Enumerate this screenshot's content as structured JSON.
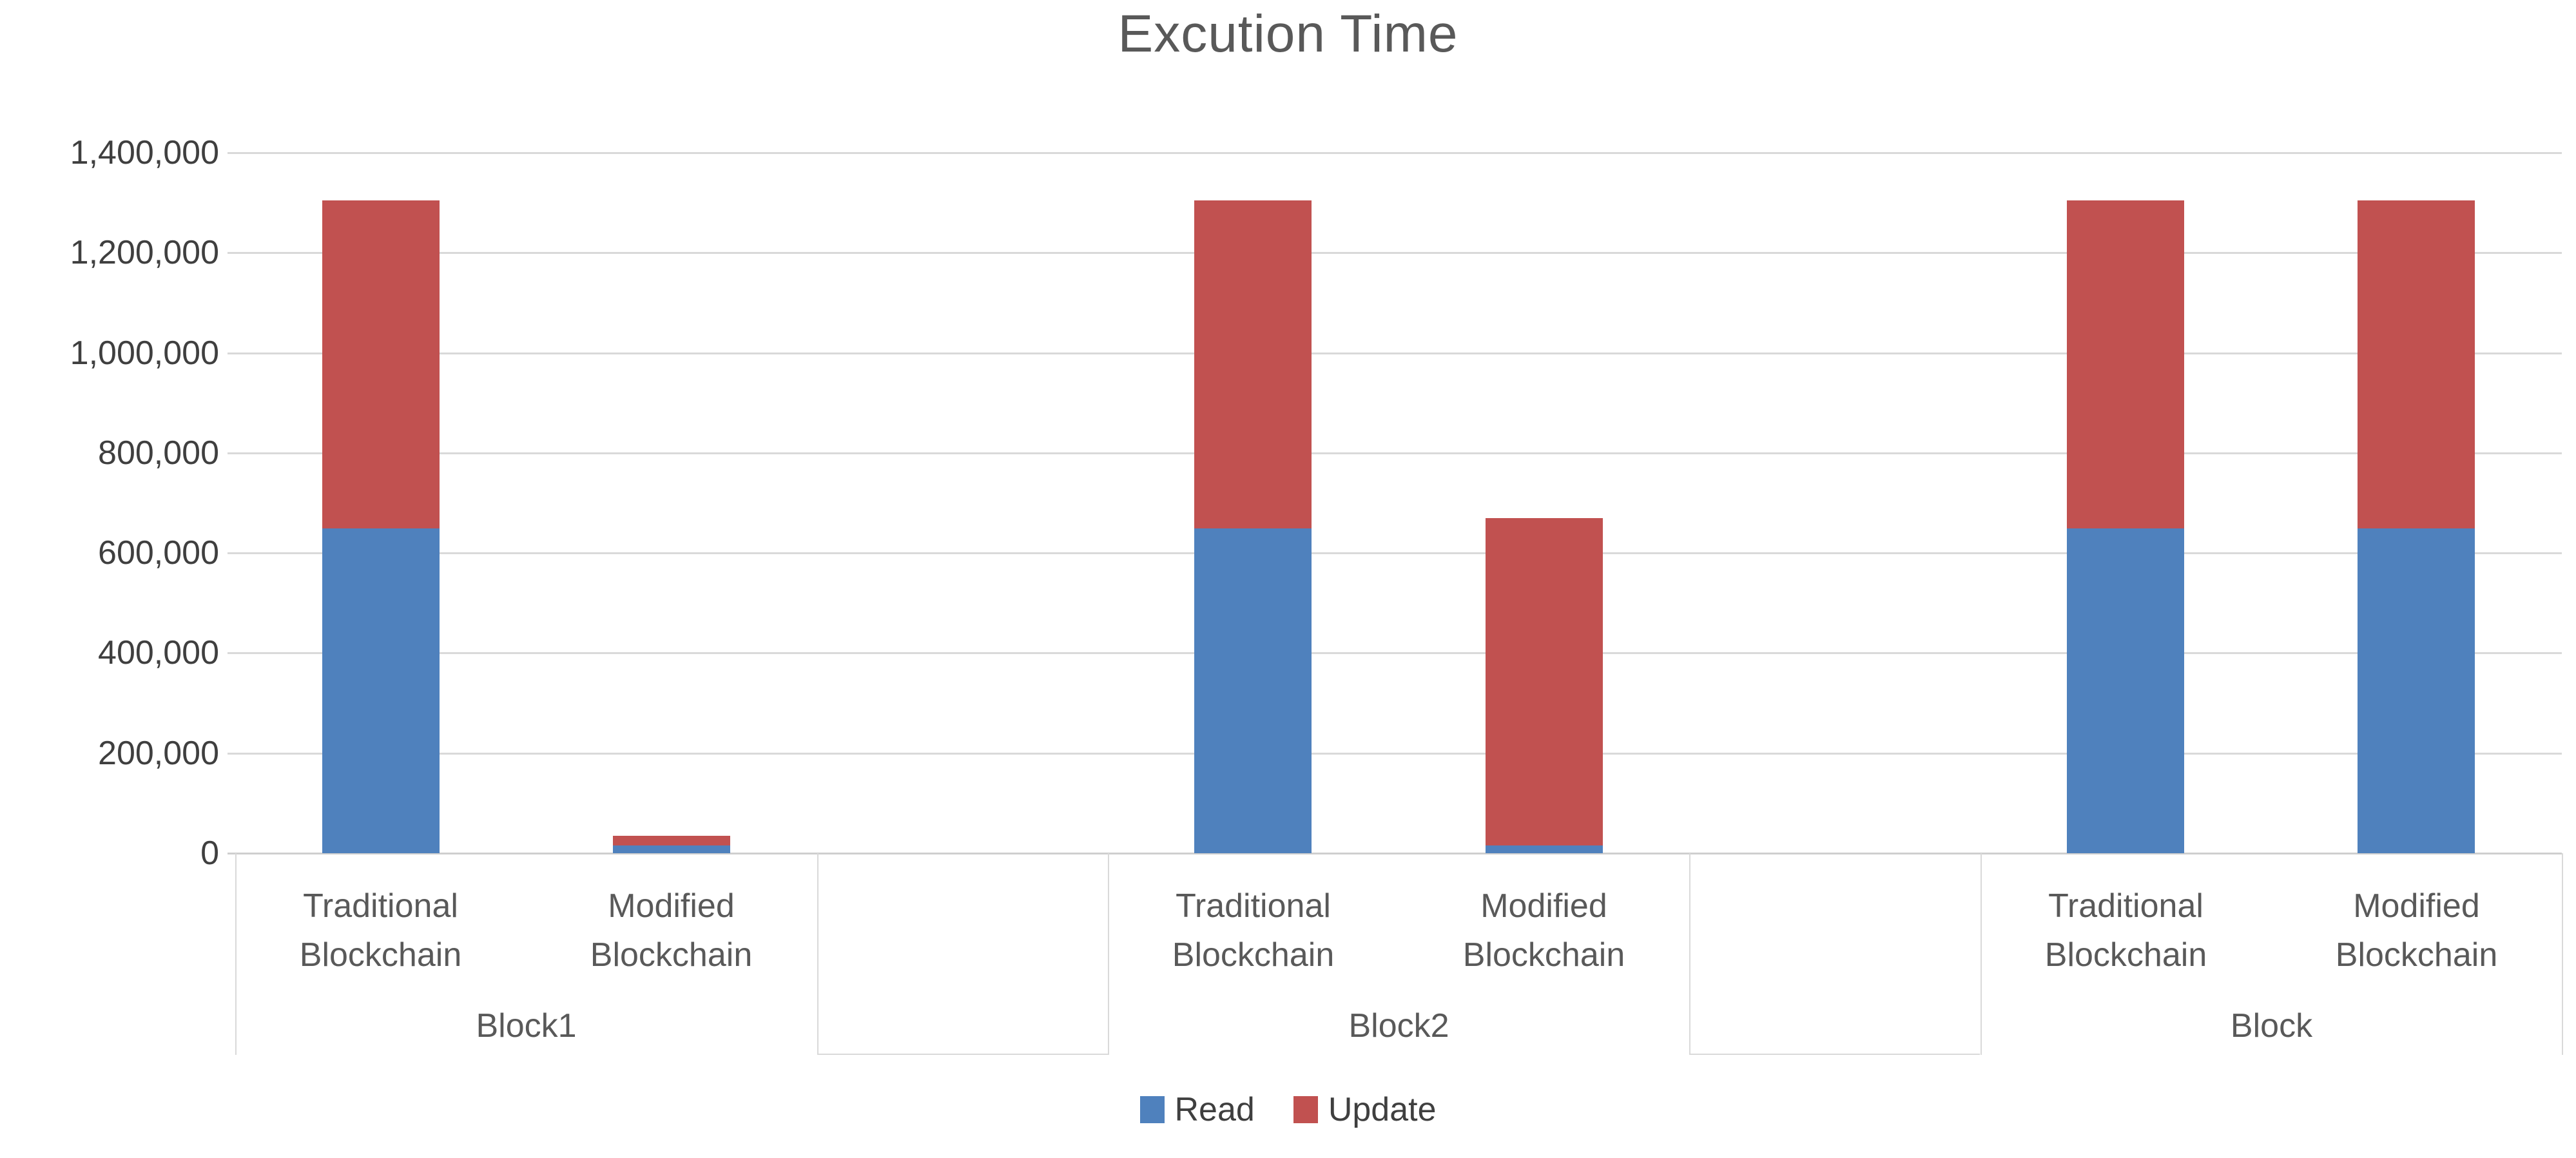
{
  "title": "Excution Time",
  "legend": {
    "position": "bottom",
    "items": [
      {
        "label": "Read",
        "color": "#4F81BD"
      },
      {
        "label": "Update",
        "color": "#C15150"
      }
    ]
  },
  "y_axis": {
    "min": 0,
    "max": 1400000,
    "step": 200000,
    "tick_labels_top_down": [
      "1,400,000",
      "1,200,000",
      "1,000,000",
      "800,000",
      "600,000",
      "400,000",
      "200,000",
      "0"
    ]
  },
  "chart_data": {
    "type": "bar",
    "stacked": true,
    "title": "Excution Time",
    "xlabel": "",
    "ylabel": "",
    "ylim": [
      0,
      1400000
    ],
    "ytick_interval": 200000,
    "grid": "horizontal",
    "legend_position": "bottom",
    "series_order": [
      "Read",
      "Update"
    ],
    "colors": {
      "Read": "#4F81BD",
      "Update": "#C15150"
    },
    "groups": [
      {
        "label": "Block1",
        "categories": [
          "Traditional Blockchain",
          "Modified Blockchain"
        ],
        "series": {
          "Read": [
            650000,
            15000
          ],
          "Update": [
            655000,
            20000
          ]
        },
        "totals": [
          1305000,
          35000
        ]
      },
      {
        "label": "Block2",
        "categories": [
          "Traditional Blockchain",
          "Modified Blockchain"
        ],
        "series": {
          "Read": [
            650000,
            15000
          ],
          "Update": [
            655000,
            655000
          ]
        },
        "totals": [
          1305000,
          670000
        ]
      },
      {
        "label": "Block",
        "categories": [
          "Traditional Blockchain",
          "Modified Blockchain"
        ],
        "series": {
          "Read": [
            650000,
            650000
          ],
          "Update": [
            655000,
            655000
          ]
        },
        "totals": [
          1305000,
          1305000
        ]
      }
    ]
  }
}
